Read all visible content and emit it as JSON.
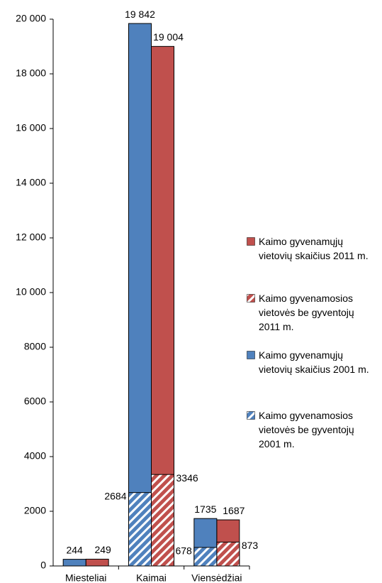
{
  "chart_data": {
    "type": "bar",
    "categories": [
      "Miesteliai",
      "Kaimai",
      "Viensėdžiai"
    ],
    "series": [
      {
        "name": "Kaimo gyvenamųjų vietovių skaičius 2011 m.",
        "color": "#c0504d",
        "hatch": false,
        "values": [
          249,
          19004,
          1687
        ],
        "value_labels": [
          "249",
          "19 004",
          "1687"
        ]
      },
      {
        "name": "Kaimo gyvenamosios vietovės be gyventojų 2011 m.",
        "color": "#c0504d",
        "hatch": true,
        "values": [
          null,
          3346,
          873
        ]
      },
      {
        "name": "Kaimo gyvenamųjų vietovių skaičius 2001 m.",
        "color": "#4f81bd",
        "hatch": false,
        "values": [
          244,
          19842,
          1735
        ],
        "value_labels": [
          "244",
          "19 842",
          "1735"
        ]
      },
      {
        "name": "Kaimo gyvenamosios vietovės be gyventojų 2001 m.",
        "color": "#4f81bd",
        "hatch": true,
        "values": [
          null,
          2684,
          678
        ]
      }
    ],
    "ylim": [
      0,
      20000
    ],
    "yticks": [
      0,
      2000,
      4000,
      6000,
      8000,
      {
        "value": 10000,
        "label": "10 000"
      },
      {
        "value": 12000,
        "label": "12 000"
      },
      {
        "value": 14000,
        "label": "14 000"
      },
      {
        "value": 16000,
        "label": "16 000"
      },
      {
        "value": 18000,
        "label": "18 000"
      },
      {
        "value": 20000,
        "label": "20 000"
      }
    ],
    "grid": false
  }
}
